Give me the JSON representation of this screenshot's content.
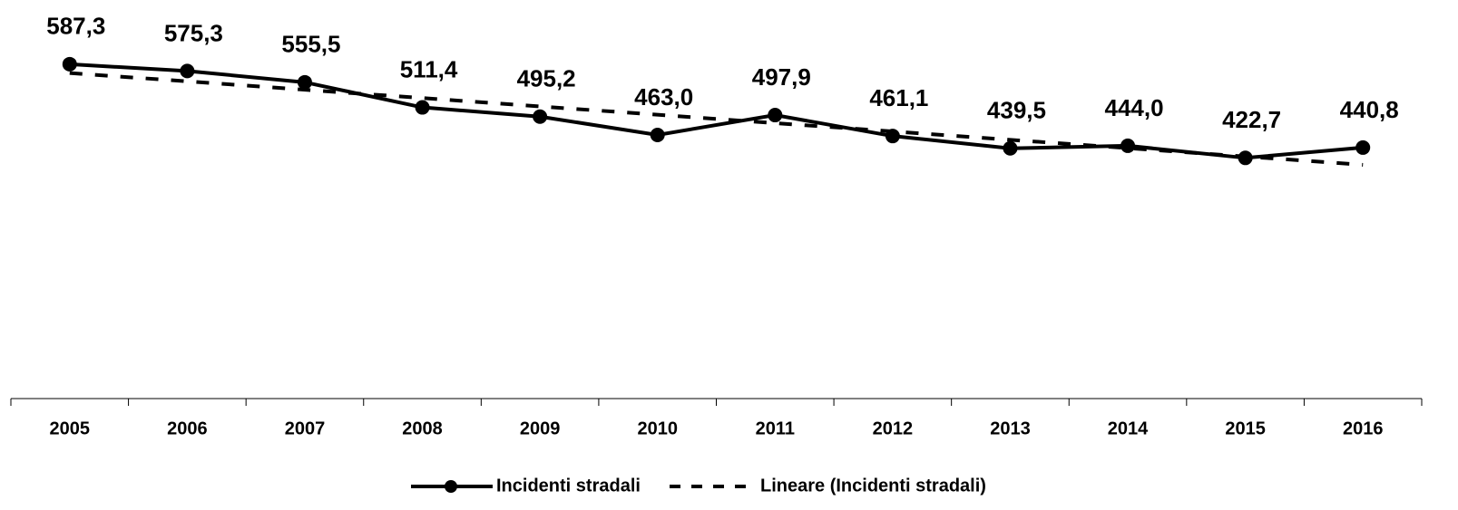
{
  "chart_data": {
    "type": "line",
    "categories": [
      "2005",
      "2006",
      "2007",
      "2008",
      "2009",
      "2010",
      "2011",
      "2012",
      "2013",
      "2014",
      "2015",
      "2016"
    ],
    "series": [
      {
        "name": "Incidenti stradali",
        "color": "#000000",
        "values": [
          587.3,
          575.3,
          555.5,
          511.4,
          495.2,
          463.0,
          497.9,
          461.1,
          439.5,
          444.0,
          422.7,
          440.8
        ],
        "value_labels": [
          "587,3",
          "575,3",
          "555,5",
          "511,4",
          "495,2",
          "463,0",
          "497,9",
          "461,1",
          "439,5",
          "444,0",
          "422,7",
          "440,8"
        ]
      }
    ],
    "trendline": {
      "name": "Lineare (Incidenti stradali)",
      "type": "linear",
      "color": "#000000"
    },
    "ylim": [
      0,
      700
    ]
  }
}
